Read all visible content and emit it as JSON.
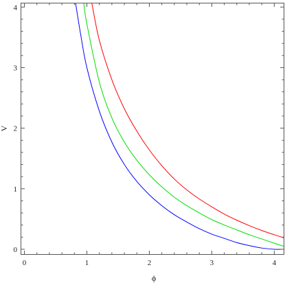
{
  "chart_data": {
    "type": "line",
    "title": "",
    "xlabel": "ϕ",
    "ylabel": "V",
    "xlim": [
      -0.05,
      4.15
    ],
    "ylim": [
      -0.08,
      4.06
    ],
    "xticks": [
      0,
      1,
      2,
      3,
      4
    ],
    "yticks": [
      0,
      1,
      2,
      3,
      4
    ],
    "x_tick_labels": [
      "0",
      "1",
      "2",
      "3",
      "4"
    ],
    "y_tick_labels": [
      "0",
      "1",
      "2",
      "3",
      "4"
    ],
    "grid": false,
    "series": [
      {
        "color": "#0000ff",
        "x": [
          0.82,
          0.9,
          1.0,
          1.2,
          1.4,
          1.6,
          1.8,
          2.0,
          2.2,
          2.4,
          2.6,
          2.8,
          3.0,
          3.2,
          3.4,
          3.6,
          3.8,
          4.0,
          4.15
        ],
        "y": [
          4.06,
          3.55,
          3.0,
          2.28,
          1.77,
          1.4,
          1.12,
          0.9,
          0.72,
          0.57,
          0.45,
          0.34,
          0.25,
          0.18,
          0.11,
          0.06,
          0.02,
          0.0,
          0.0
        ]
      },
      {
        "color": "#00dd00",
        "x": [
          0.95,
          1.0,
          1.2,
          1.4,
          1.6,
          1.8,
          2.0,
          2.2,
          2.4,
          2.6,
          2.8,
          3.0,
          3.2,
          3.4,
          3.6,
          3.8,
          4.0,
          4.15
        ],
        "y": [
          4.06,
          3.72,
          2.76,
          2.17,
          1.77,
          1.47,
          1.23,
          1.03,
          0.86,
          0.72,
          0.6,
          0.49,
          0.4,
          0.32,
          0.24,
          0.17,
          0.1,
          0.05
        ]
      },
      {
        "color": "#ff0000",
        "x": [
          1.08,
          1.2,
          1.4,
          1.6,
          1.8,
          2.0,
          2.2,
          2.4,
          2.6,
          2.8,
          3.0,
          3.2,
          3.4,
          3.6,
          3.8,
          4.0,
          4.15
        ],
        "y": [
          4.06,
          3.45,
          2.8,
          2.32,
          1.95,
          1.64,
          1.38,
          1.16,
          0.98,
          0.83,
          0.7,
          0.58,
          0.48,
          0.39,
          0.31,
          0.24,
          0.19
        ]
      }
    ]
  }
}
